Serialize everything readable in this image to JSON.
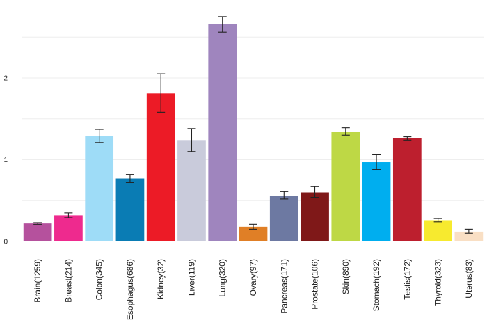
{
  "chart_data": {
    "type": "bar",
    "title": "",
    "xlabel": "",
    "ylabel": "",
    "ylim": [
      0,
      2.8
    ],
    "yticks": [
      0,
      1,
      2
    ],
    "ytick_labels": [
      "0",
      "1",
      "2"
    ],
    "grid_values": [
      0.5,
      1,
      1.5,
      2,
      2.5
    ],
    "categories": [
      "Brain(1259)",
      "Breast(214)",
      "Colon(345)",
      "Esophagus(686)",
      "Kidney(32)",
      "Liver(119)",
      "Lung(320)",
      "Ovary(97)",
      "Pancreas(171)",
      "Prostate(106)",
      "Skin(890)",
      "Stomach(192)",
      "Testis(172)",
      "Thyroid(323)",
      "Uterus(83)"
    ],
    "values": [
      0.22,
      0.32,
      1.29,
      0.77,
      1.81,
      1.24,
      2.66,
      0.18,
      0.56,
      0.6,
      1.34,
      0.97,
      1.26,
      0.26,
      0.12
    ],
    "error_low": [
      0.21,
      0.29,
      1.21,
      0.72,
      1.58,
      1.1,
      2.56,
      0.15,
      0.52,
      0.54,
      1.3,
      0.88,
      1.24,
      0.24,
      0.1
    ],
    "error_high": [
      0.23,
      0.35,
      1.37,
      0.82,
      2.05,
      1.38,
      2.75,
      0.21,
      0.61,
      0.67,
      1.39,
      1.06,
      1.28,
      0.28,
      0.15
    ],
    "colors": [
      "#b5519d",
      "#ee2a8e",
      "#9edcf7",
      "#0a7cb4",
      "#ec1b26",
      "#c9cbdb",
      "#9f85be",
      "#e07f26",
      "#6d79a2",
      "#7f1818",
      "#bed845",
      "#00aeef",
      "#bd1f2e",
      "#f7ea2f",
      "#f9dfc4"
    ]
  }
}
